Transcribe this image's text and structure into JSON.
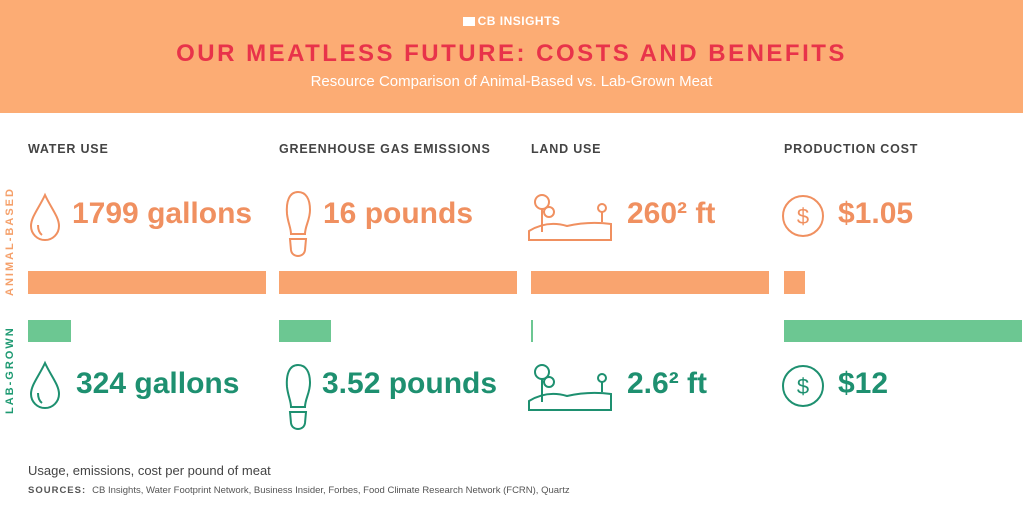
{
  "brand": "CB INSIGHTS",
  "colors": {
    "animal": "#f9a46f",
    "lab": "#6cc792",
    "title": "#e8334a",
    "header": "#fcac74"
  },
  "chart_data": {
    "type": "bar",
    "title": "OUR MEATLESS FUTURE: COSTS AND BENEFITS",
    "subtitle": "Resource Comparison of Animal-Based vs. Lab-Grown Meat",
    "row_labels": {
      "animal": "ANIMAL-BASED",
      "lab": "LAB-GROWN"
    },
    "categories": [
      "WATER USE",
      "GREENHOUSE GAS EMISSIONS",
      "LAND USE",
      "PRODUCTION COST"
    ],
    "series": [
      {
        "name": "ANIMAL-BASED",
        "values": [
          1799,
          16,
          260,
          1.05
        ],
        "labels": [
          "1799 gallons",
          "16 pounds",
          "260² ft",
          "$1.05"
        ]
      },
      {
        "name": "LAB-GROWN",
        "values": [
          324,
          3.52,
          2.6,
          12
        ],
        "labels": [
          "324 gallons",
          "3.52 pounds",
          "2.6² ft",
          "$12"
        ]
      }
    ],
    "icons": [
      "water-drop-icon",
      "footprint-icon",
      "landscape-icon",
      "dollar-icon"
    ],
    "footnote": "Usage, emissions, cost per pound of meat",
    "sources_label": "SOURCES:",
    "sources": "CB Insights, Water Footprint Network, Business Insider, Forbes, Food Climate Research Network (FCRN), Quartz"
  }
}
